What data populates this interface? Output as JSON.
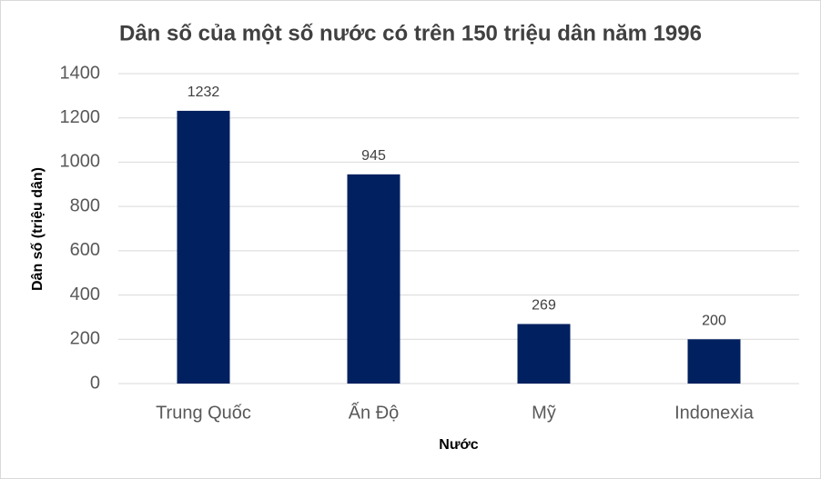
{
  "chart_data": {
    "type": "bar",
    "title": "Dân số của một số nước có trên 150 triệu dân năm 1996",
    "x_label": "Nước",
    "y_label": "Dân số (triệu dân)",
    "categories": [
      "Trung Quốc",
      "Ấn Độ",
      "Mỹ",
      "Indonexia"
    ],
    "values": [
      1232,
      945,
      269,
      200
    ],
    "color": "#002060",
    "ylim": [
      0,
      1400
    ],
    "yticks": [
      0,
      200,
      400,
      600,
      800,
      1000,
      1200,
      1400
    ],
    "grid": true
  }
}
